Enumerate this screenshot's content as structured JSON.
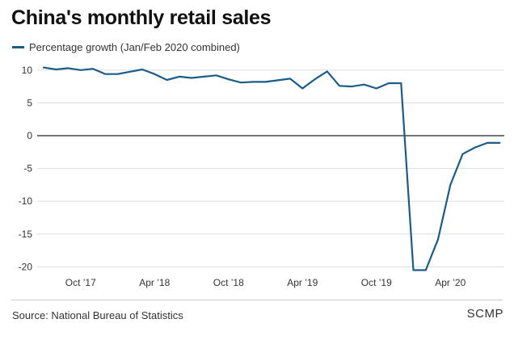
{
  "title": "China's monthly retail sales",
  "legend": {
    "label": "Percentage growth (Jan/Feb 2020 combined)"
  },
  "source": "Source: National Bureau of Statistics",
  "brand": "SCMP",
  "colors": {
    "series": "#1a5c8a",
    "grid": "#dddddd",
    "zero_line": "#222222"
  },
  "chart_data": {
    "type": "line",
    "title": "China's monthly retail sales",
    "xlabel": "",
    "ylabel": "",
    "ylim": [
      -22,
      11
    ],
    "y_ticks": [
      10,
      5,
      0,
      -5,
      -10,
      -15,
      -20
    ],
    "y_tick_labels": [
      "10",
      "5",
      "0",
      "-5",
      "-10",
      "-15",
      "-20"
    ],
    "x_ticks": [
      {
        "label": "Oct ’17",
        "x": "2017-10"
      },
      {
        "label": "Apr ’18",
        "x": "2018-04"
      },
      {
        "label": "Oct ’18",
        "x": "2018-10"
      },
      {
        "label": "Apr ’19",
        "x": "2019-04"
      },
      {
        "label": "Oct ’19",
        "x": "2019-10"
      },
      {
        "label": "Apr ’20",
        "x": "2020-04"
      }
    ],
    "grid": true,
    "series": [
      {
        "name": "Percentage growth (Jan/Feb 2020 combined)",
        "x": [
          "2017-07",
          "2017-08",
          "2017-09",
          "2017-10",
          "2017-11",
          "2017-12",
          "2018-01",
          "2018-03",
          "2018-04",
          "2018-05",
          "2018-06",
          "2018-07",
          "2018-08",
          "2018-09",
          "2018-10",
          "2018-11",
          "2018-12",
          "2019-01",
          "2019-03",
          "2019-04",
          "2019-05",
          "2019-06",
          "2019-07",
          "2019-08",
          "2019-09",
          "2019-10",
          "2019-11",
          "2019-12",
          "2020-01",
          "2020-02",
          "2020-03",
          "2020-04",
          "2020-05",
          "2020-06",
          "2020-07",
          "2020-08"
        ],
        "values": [
          10.4,
          10.1,
          10.3,
          10.0,
          10.2,
          9.4,
          9.4,
          10.1,
          9.4,
          8.5,
          9.0,
          8.8,
          9.0,
          9.2,
          8.6,
          8.1,
          8.2,
          8.2,
          8.7,
          7.2,
          8.6,
          9.8,
          7.6,
          7.5,
          7.8,
          7.2,
          8.0,
          8.0,
          -20.5,
          -20.5,
          -15.8,
          -7.5,
          -2.8,
          -1.8,
          -1.1,
          -1.1
        ]
      }
    ]
  }
}
